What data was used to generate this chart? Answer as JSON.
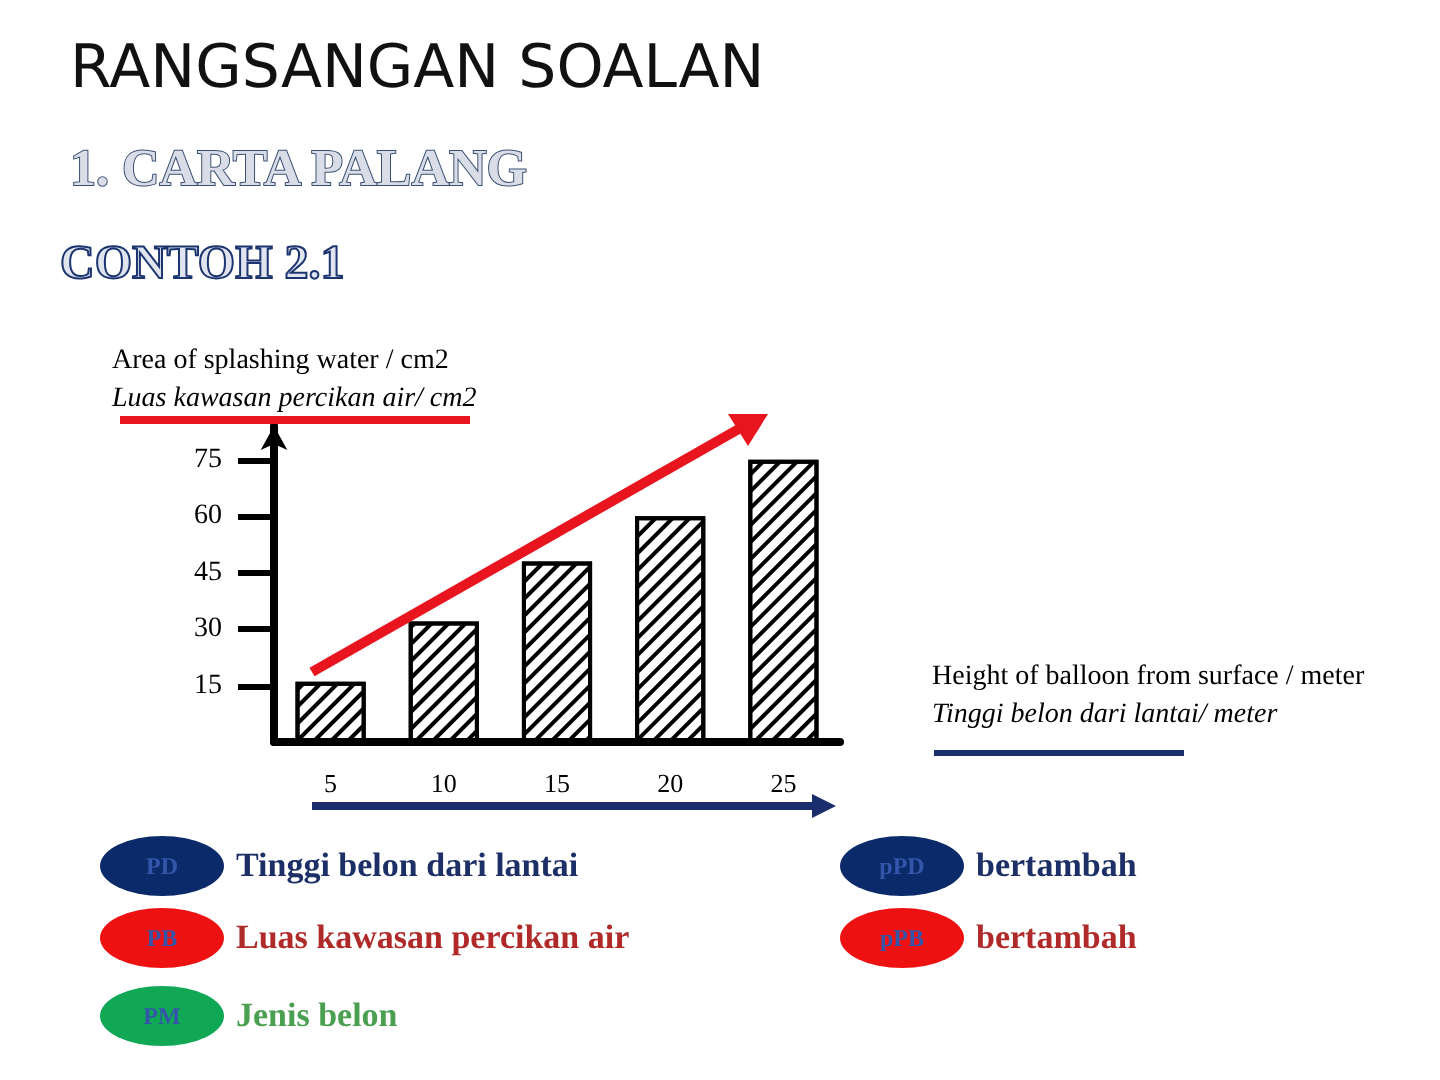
{
  "chart_data": {
    "type": "bar",
    "title": "RANGSANGAN SOALAN",
    "subtitle": "1. CARTA PALANG",
    "xlabel": "Height of balloon from surface / meter\nTinggi belon dari lantai/ meter",
    "ylabel": "Area of splashing water / cm2\nLuas kawasan percikan air/ cm2",
    "categories": [
      "5",
      "10",
      "15",
      "20",
      "25"
    ],
    "values": [
      16,
      32,
      48,
      60,
      75
    ],
    "color": "#000000",
    "ylim": [
      0,
      84
    ],
    "yticks": [
      15,
      30,
      45,
      60,
      75
    ],
    "grid": false,
    "annotations": [
      "CONTOH 2.1",
      "PD",
      "Tinggi belon dari lantai",
      "PB",
      "Luas kawasan percikan air",
      "PM",
      "Jenis belon",
      "pPD",
      "bertambah",
      "pPB",
      "bertambah"
    ]
  }
}
